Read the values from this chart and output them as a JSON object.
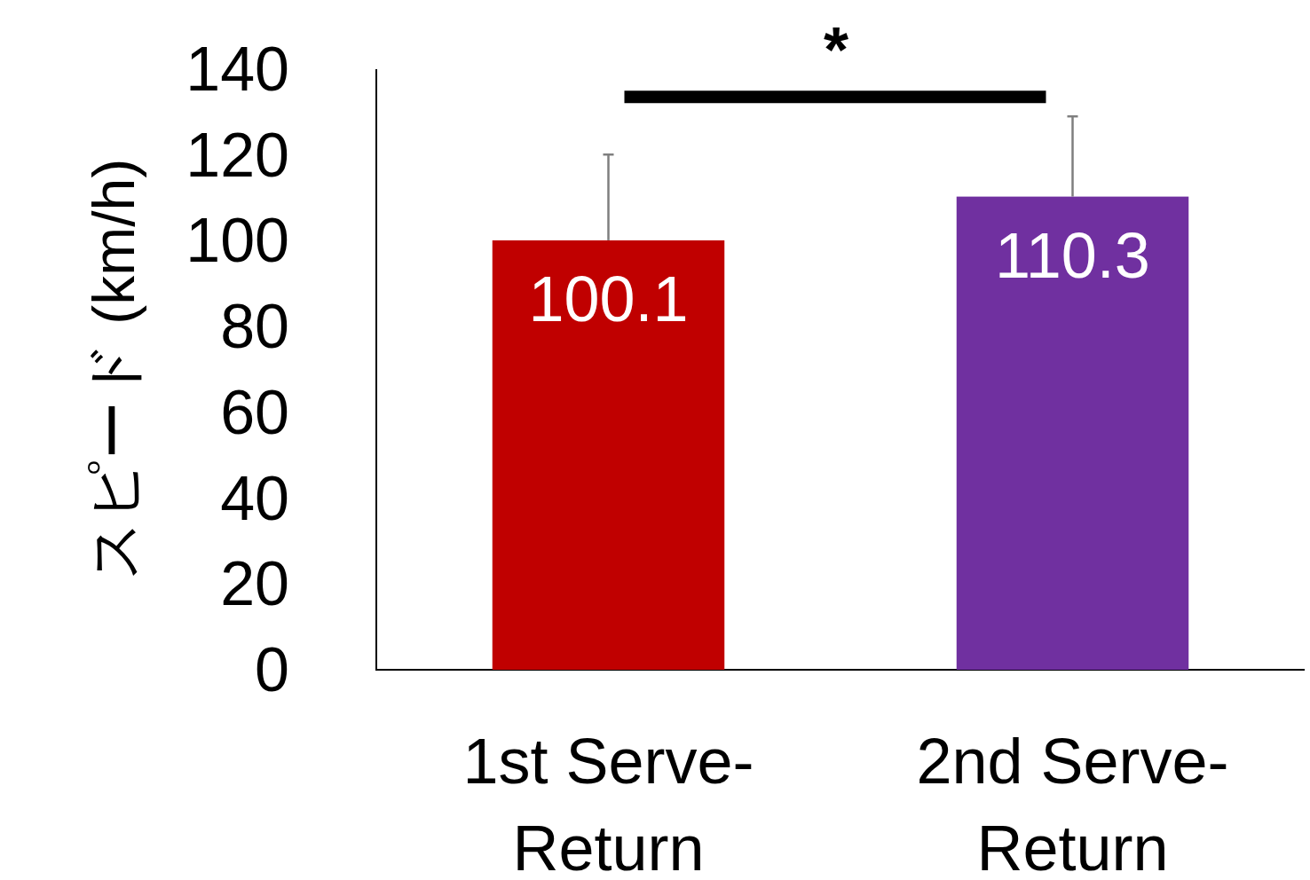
{
  "chart_data": {
    "type": "bar",
    "ylabel": "スピード (km/h)",
    "categories": [
      "1st Serve-Return",
      "2nd Serve-Return"
    ],
    "values": [
      100.1,
      110.3
    ],
    "colors": [
      "#c00000",
      "#7030a0"
    ],
    "errors": [
      20.0,
      18.7
    ],
    "ylim": [
      0,
      140
    ],
    "yticks": [
      0,
      20,
      40,
      60,
      80,
      100,
      120,
      140
    ],
    "data_labels": true,
    "grid": false,
    "annotations": [
      "*"
    ]
  }
}
